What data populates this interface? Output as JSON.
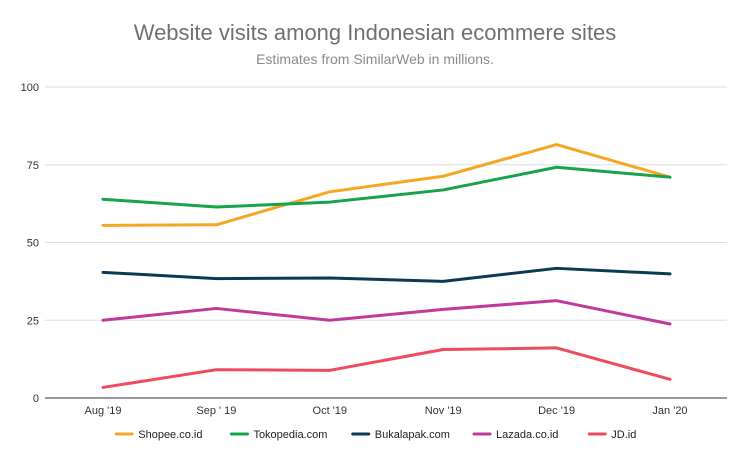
{
  "chart_data": {
    "type": "line",
    "title": "Website visits among Indonesian ecommere sites",
    "subtitle": "Estimates from SimilarWeb in millions.",
    "categories": [
      "Aug '19",
      "Sep ' 19",
      "Oct '19",
      "Nov '19",
      "Dec '19",
      "Jan '20"
    ],
    "ylim": [
      0,
      100
    ],
    "yticks": [
      0,
      25,
      50,
      75,
      100
    ],
    "grid": true,
    "legend_position": "bottom",
    "series": [
      {
        "name": "Shopee.co.id",
        "color": "#f5a623",
        "values": [
          55.5,
          55.7,
          66.3,
          71.3,
          81.5,
          71.0
        ]
      },
      {
        "name": "Tokopedia.com",
        "color": "#16a34a",
        "values": [
          63.9,
          61.4,
          63.0,
          66.9,
          74.2,
          71.0
        ]
      },
      {
        "name": "Bukalapak.com",
        "color": "#0b3a53",
        "values": [
          40.4,
          38.4,
          38.6,
          37.5,
          41.7,
          39.9
        ]
      },
      {
        "name": "Lazada.co.id",
        "color": "#c13a9a",
        "values": [
          25.0,
          28.8,
          25.0,
          28.5,
          31.3,
          23.8
        ]
      },
      {
        "name": "JD.id",
        "color": "#ef4a5e",
        "values": [
          3.4,
          9.1,
          8.9,
          15.6,
          16.1,
          6.0
        ]
      }
    ]
  }
}
